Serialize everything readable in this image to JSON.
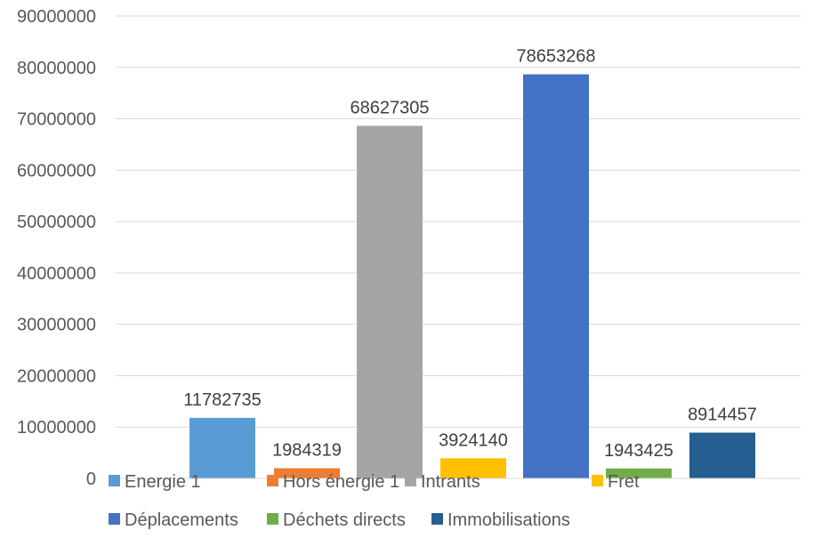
{
  "chart_data": {
    "type": "bar",
    "title": "",
    "xlabel": "",
    "ylabel": "",
    "ylim": [
      0,
      90000000
    ],
    "y_ticks": [
      0,
      10000000,
      20000000,
      30000000,
      40000000,
      50000000,
      60000000,
      70000000,
      80000000,
      90000000
    ],
    "grid": true,
    "legend_position": "bottom",
    "series": [
      {
        "name": "Energie 1",
        "values": [
          11782735
        ],
        "color": "#5B9BD5"
      },
      {
        "name": "Hors énergie 1",
        "values": [
          1984319
        ],
        "color": "#ED7D31"
      },
      {
        "name": "Intrants",
        "values": [
          68627305
        ],
        "color": "#A5A5A5"
      },
      {
        "name": "Fret",
        "values": [
          3924140
        ],
        "color": "#FFC000"
      },
      {
        "name": "Déplacements",
        "values": [
          78653268
        ],
        "color": "#4472C4"
      },
      {
        "name": "Déchets directs",
        "values": [
          1943425
        ],
        "color": "#70AD47"
      },
      {
        "name": "Immobilisations",
        "values": [
          8914457
        ],
        "color": "#255E91"
      }
    ],
    "data_labels": true
  }
}
